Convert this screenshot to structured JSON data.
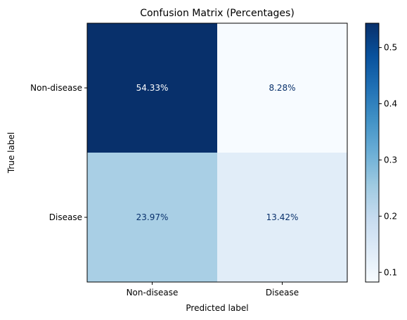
{
  "chart_data": {
    "type": "heatmap",
    "title": "Confusion Matrix (Percentages)",
    "xlabel": "Predicted label",
    "ylabel": "True label",
    "x_categories": [
      "Non-disease",
      "Disease"
    ],
    "y_categories": [
      "Non-disease",
      "Disease"
    ],
    "values": [
      [
        0.5433,
        0.0828
      ],
      [
        0.2397,
        0.1342
      ]
    ],
    "cell_labels": [
      [
        "54.33%",
        "8.28%"
      ],
      [
        "23.97%",
        "13.42%"
      ]
    ],
    "colormap": "Blues",
    "colorbar": {
      "min": 0.0828,
      "max": 0.5433,
      "ticks": [
        0.1,
        0.2,
        0.3,
        0.4,
        0.5
      ],
      "tick_labels": [
        "0.1",
        "0.2",
        "0.3",
        "0.4",
        "0.5"
      ]
    },
    "grid": false
  }
}
